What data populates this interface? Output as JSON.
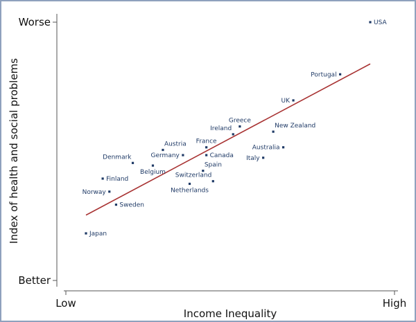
{
  "chart_data": {
    "type": "scatter",
    "xlabel": "Income Inequality",
    "ylabel": "Index of health and social problems",
    "x_tick_labels": [
      "Low",
      "High"
    ],
    "y_tick_labels": [
      "Better",
      "Worse"
    ],
    "xlim": [
      0,
      100
    ],
    "ylim": [
      0,
      100
    ],
    "grid": false,
    "colors": {
      "points": "#1f3a66",
      "labels": "#1f3a66",
      "trend": "#a83232",
      "axis": "#555555"
    },
    "points": [
      {
        "label": "USA",
        "x": 92,
        "y": 100
      },
      {
        "label": "Portugal",
        "x": 83,
        "y": 80
      },
      {
        "label": "UK",
        "x": 69,
        "y": 70
      },
      {
        "label": "Greece",
        "x": 53,
        "y": 60
      },
      {
        "label": "New Zealand",
        "x": 63,
        "y": 58
      },
      {
        "label": "Ireland",
        "x": 51,
        "y": 57
      },
      {
        "label": "France",
        "x": 43,
        "y": 52
      },
      {
        "label": "Austria",
        "x": 30,
        "y": 51
      },
      {
        "label": "Australia",
        "x": 66,
        "y": 52
      },
      {
        "label": "Germany",
        "x": 36,
        "y": 49
      },
      {
        "label": "Canada",
        "x": 43,
        "y": 49
      },
      {
        "label": "Denmark",
        "x": 21,
        "y": 46
      },
      {
        "label": "Italy",
        "x": 60,
        "y": 48
      },
      {
        "label": "Belgium",
        "x": 27,
        "y": 45
      },
      {
        "label": "Spain",
        "x": 42,
        "y": 43
      },
      {
        "label": "Finland",
        "x": 12,
        "y": 40
      },
      {
        "label": "Switzerland",
        "x": 45,
        "y": 39
      },
      {
        "label": "Netherlands",
        "x": 38,
        "y": 38
      },
      {
        "label": "Norway",
        "x": 14,
        "y": 35
      },
      {
        "label": "Sweden",
        "x": 16,
        "y": 30
      },
      {
        "label": "Japan",
        "x": 7,
        "y": 19
      }
    ],
    "trend_line": {
      "x": [
        7,
        92
      ],
      "y": [
        26,
        84
      ]
    }
  }
}
